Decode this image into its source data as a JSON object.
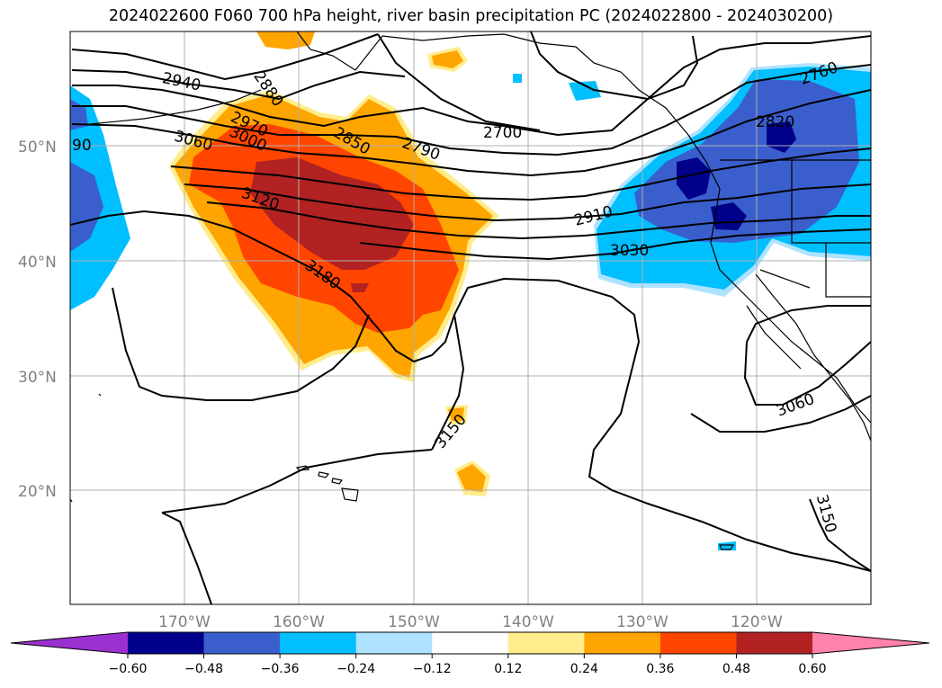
{
  "title": "2024022600 F060 700 hPa height, river basin precipitation PC (2024022800 - 2024030200)",
  "lon_ticks": [
    "170°W",
    "160°W",
    "150°W",
    "140°W",
    "130°W",
    "120°W"
  ],
  "lat_ticks": [
    "50°N",
    "40°N",
    "30°N",
    "20°N"
  ],
  "contour_labels": [
    "2940",
    "2880",
    "2970",
    "3000",
    "3060",
    "2850",
    "2790",
    "2700",
    "2760",
    "2820",
    "2910",
    "3030",
    "3120",
    "3180",
    "3150",
    "3060",
    "3150",
    "90"
  ],
  "colorbar": {
    "ticks": [
      "−0.60",
      "−0.48",
      "−0.36",
      "−0.24",
      "−0.12",
      "0.12",
      "0.24",
      "0.36",
      "0.48",
      "0.60"
    ],
    "colors": [
      "#9b30d0",
      "#00008b",
      "#3a5fcd",
      "#00bfff",
      "#aee3ff",
      "#ffffff",
      "#ffec8b",
      "#ffa500",
      "#ff4500",
      "#b22222",
      "#ff82ab"
    ]
  }
}
